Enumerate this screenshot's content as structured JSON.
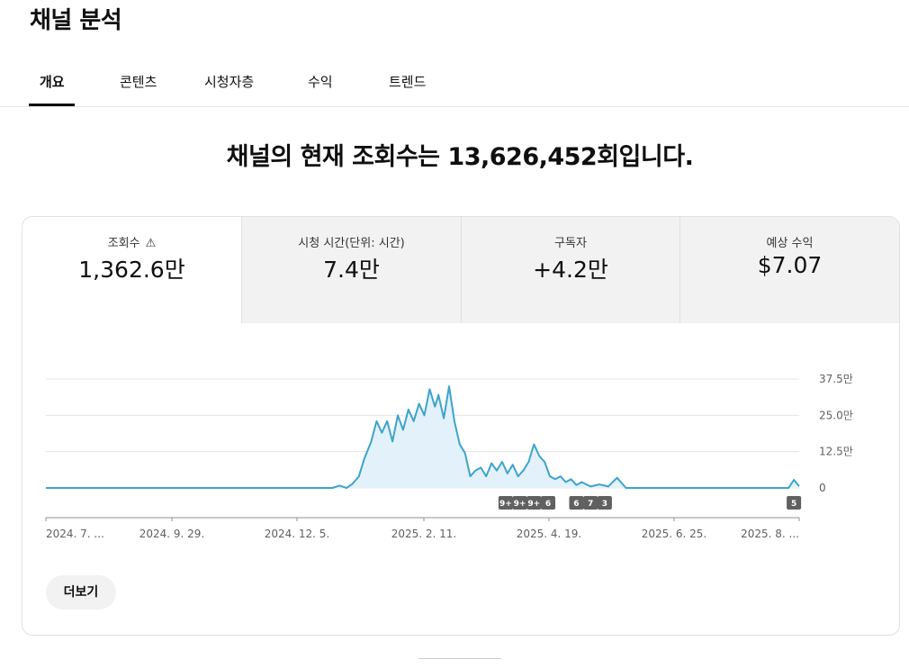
{
  "page_title": "채널 분석",
  "tabs": [
    {
      "label": "개요",
      "active": true
    },
    {
      "label": "콘텐츠"
    },
    {
      "label": "시청자층"
    },
    {
      "label": "수익"
    },
    {
      "label": "트렌드"
    }
  ],
  "headline": "채널의 현재 조회수는 13,626,452회입니다.",
  "metrics": [
    {
      "label": "조회수",
      "value": "1,362.6만",
      "warning_icon": "warning-triangle-icon"
    },
    {
      "label": "시청 시간(단위: 시간)",
      "value": "7.4만"
    },
    {
      "label": "구독자",
      "value": "+4.2만"
    },
    {
      "label": "예상 수익",
      "value": "$7.07"
    }
  ],
  "more_button": "더보기",
  "colors": {
    "line": "#3ea3cc",
    "fill": "#e3f2fa",
    "badge": "#606060",
    "accent": "#0f0f0f"
  },
  "chart_data": {
    "type": "area",
    "x_tick_labels": [
      "2024. 7. ...",
      "2024. 9. 29.",
      "2024. 12. 5.",
      "2025. 2. 11.",
      "2025. 4. 19.",
      "2025. 6. 25.",
      "2025. 8. ..."
    ],
    "y_tick_labels": [
      "37.5만",
      "25.0만",
      "12.5만",
      "0"
    ],
    "ylim": [
      0,
      375000
    ],
    "grid": true,
    "x_range": [
      "2024-07-01",
      "2025-08-31"
    ],
    "badges": [
      {
        "label": "9+",
        "date": "2025-03-18"
      },
      {
        "label": "9+",
        "date": "2025-03-26"
      },
      {
        "label": "9+",
        "date": "2025-04-03"
      },
      {
        "label": "6",
        "date": "2025-04-11"
      },
      {
        "label": "6",
        "date": "2025-04-27"
      },
      {
        "label": "7",
        "date": "2025-05-05"
      },
      {
        "label": "3",
        "date": "2025-05-13"
      },
      {
        "label": "5",
        "date": "2025-08-28"
      }
    ],
    "series": [
      {
        "points": [
          [
            "2024-07-01",
            0
          ],
          [
            "2024-12-10",
            0
          ],
          [
            "2024-12-14",
            8000
          ],
          [
            "2024-12-18",
            0
          ],
          [
            "2024-12-21",
            12000
          ],
          [
            "2024-12-25",
            40000
          ],
          [
            "2024-12-28",
            100000
          ],
          [
            "2025-01-01",
            160000
          ],
          [
            "2025-01-04",
            230000
          ],
          [
            "2025-01-07",
            190000
          ],
          [
            "2025-01-10",
            230000
          ],
          [
            "2025-01-13",
            160000
          ],
          [
            "2025-01-16",
            250000
          ],
          [
            "2025-01-19",
            200000
          ],
          [
            "2025-01-22",
            270000
          ],
          [
            "2025-01-25",
            230000
          ],
          [
            "2025-01-28",
            290000
          ],
          [
            "2025-01-31",
            250000
          ],
          [
            "2025-02-03",
            340000
          ],
          [
            "2025-02-06",
            280000
          ],
          [
            "2025-02-08",
            320000
          ],
          [
            "2025-02-11",
            240000
          ],
          [
            "2025-02-14",
            350000
          ],
          [
            "2025-02-17",
            230000
          ],
          [
            "2025-02-20",
            150000
          ],
          [
            "2025-02-23",
            120000
          ],
          [
            "2025-02-26",
            40000
          ],
          [
            "2025-03-01",
            60000
          ],
          [
            "2025-03-04",
            70000
          ],
          [
            "2025-03-07",
            40000
          ],
          [
            "2025-03-10",
            85000
          ],
          [
            "2025-03-13",
            60000
          ],
          [
            "2025-03-16",
            90000
          ],
          [
            "2025-03-19",
            50000
          ],
          [
            "2025-03-22",
            80000
          ],
          [
            "2025-03-25",
            40000
          ],
          [
            "2025-03-28",
            60000
          ],
          [
            "2025-03-31",
            90000
          ],
          [
            "2025-04-03",
            150000
          ],
          [
            "2025-04-06",
            110000
          ],
          [
            "2025-04-09",
            90000
          ],
          [
            "2025-04-12",
            40000
          ],
          [
            "2025-04-15",
            30000
          ],
          [
            "2025-04-18",
            40000
          ],
          [
            "2025-04-21",
            20000
          ],
          [
            "2025-04-24",
            30000
          ],
          [
            "2025-04-27",
            10000
          ],
          [
            "2025-04-30",
            20000
          ],
          [
            "2025-05-05",
            5000
          ],
          [
            "2025-05-10",
            12000
          ],
          [
            "2025-05-15",
            5000
          ],
          [
            "2025-05-20",
            35000
          ],
          [
            "2025-05-25",
            0
          ],
          [
            "2025-08-25",
            0
          ],
          [
            "2025-08-28",
            28000
          ],
          [
            "2025-08-31",
            6000
          ]
        ]
      }
    ]
  }
}
